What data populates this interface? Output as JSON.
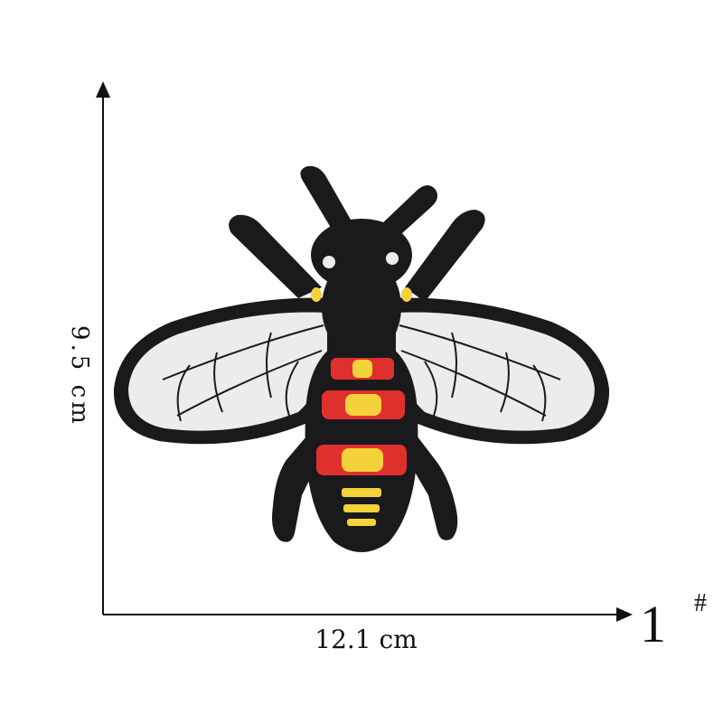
{
  "dimensions": {
    "height_label": "9.5 cm",
    "width_label": "12.1 cm"
  },
  "model": {
    "number": "1",
    "symbol": "#"
  },
  "product": {
    "subject_icon": "bee-patch-icon",
    "colors": {
      "outline": "#1a1a1d",
      "wing_fill": "#ececec",
      "stripe_red": "#e0302d",
      "stripe_yellow": "#f3d23b"
    }
  }
}
